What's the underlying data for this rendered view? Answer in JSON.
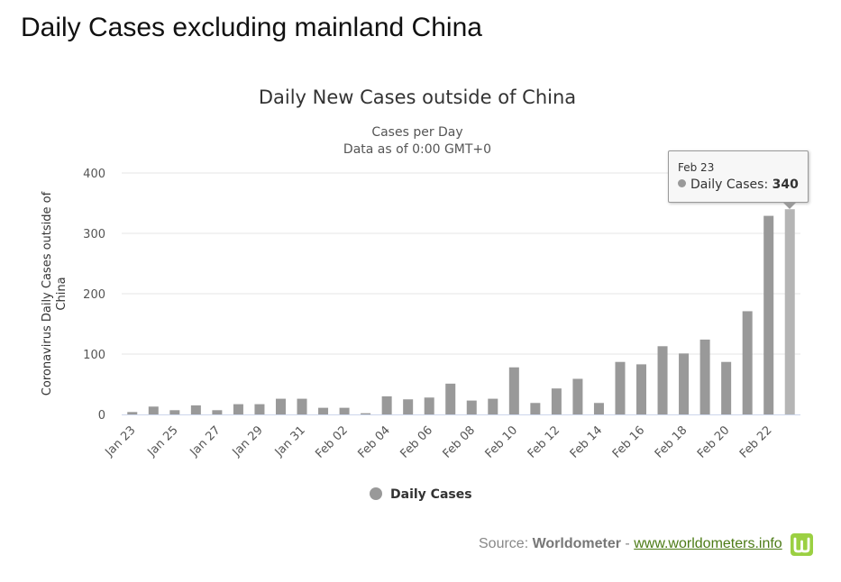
{
  "page": {
    "heading": "Daily Cases excluding mainland China"
  },
  "chart_data": {
    "type": "bar",
    "title": "Daily New Cases outside of China",
    "subtitle_lines": [
      "Cases per Day",
      "Data as of 0:00 GMT+0"
    ],
    "ylabel": "Coronavirus Daily Cases outside of China",
    "ylim": [
      0,
      400
    ],
    "yticks": [
      0,
      100,
      200,
      300,
      400
    ],
    "grid": true,
    "categories": [
      "Jan 23",
      "Jan 24",
      "Jan 25",
      "Jan 26",
      "Jan 27",
      "Jan 28",
      "Jan 29",
      "Jan 30",
      "Jan 31",
      "Feb 01",
      "Feb 02",
      "Feb 03",
      "Feb 04",
      "Feb 05",
      "Feb 06",
      "Feb 07",
      "Feb 08",
      "Feb 09",
      "Feb 10",
      "Feb 11",
      "Feb 12",
      "Feb 13",
      "Feb 14",
      "Feb 15",
      "Feb 16",
      "Feb 17",
      "Feb 18",
      "Feb 19",
      "Feb 20",
      "Feb 21",
      "Feb 22",
      "Feb 23"
    ],
    "xtick_labels": [
      "Jan 23",
      "Jan 25",
      "Jan 27",
      "Jan 29",
      "Jan 31",
      "Feb 02",
      "Feb 04",
      "Feb 06",
      "Feb 08",
      "Feb 10",
      "Feb 12",
      "Feb 14",
      "Feb 16",
      "Feb 18",
      "Feb 20",
      "Feb 22"
    ],
    "series": [
      {
        "name": "Daily Cases",
        "color": "#999999",
        "values": [
          4,
          13,
          7,
          15,
          7,
          17,
          17,
          26,
          26,
          11,
          11,
          2,
          30,
          25,
          28,
          51,
          23,
          26,
          78,
          19,
          43,
          59,
          19,
          87,
          83,
          113,
          101,
          124,
          87,
          171,
          329,
          340
        ]
      }
    ],
    "highlight_color": "#b5b5b5",
    "legend": {
      "position": "bottom-center"
    },
    "tooltip": {
      "date": "Feb 23",
      "series": "Daily Cases",
      "value_text": "340"
    }
  },
  "source": {
    "prefix": "Source: ",
    "brand": "Worldometer",
    "separator": " - ",
    "link_text": "www.worldometers.info"
  }
}
